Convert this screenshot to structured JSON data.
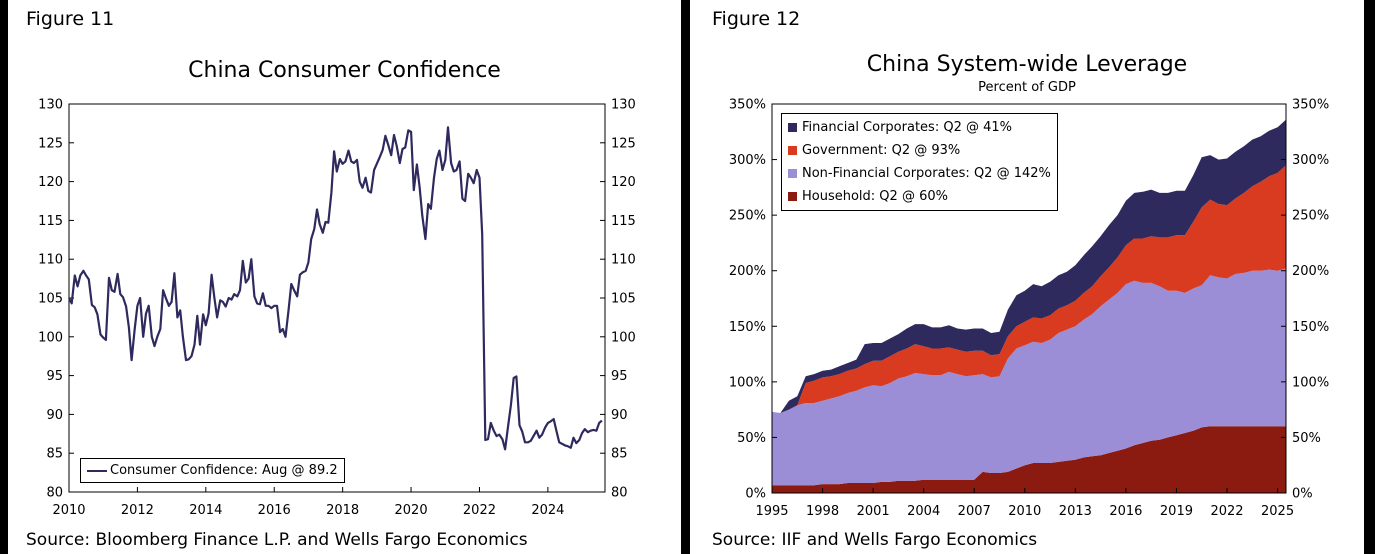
{
  "figure11": {
    "label": "Figure 11",
    "source": "Source: Bloomberg Finance L.P. and Wells Fargo Economics"
  },
  "figure12": {
    "label": "Figure 12",
    "source": "Source: IIF and Wells Fargo Economics"
  },
  "chart_data": [
    {
      "type": "line",
      "title": "China Consumer Confidence",
      "xlabel": "",
      "ylabel": "",
      "xlim": [
        2010,
        2025.67
      ],
      "ylim": [
        80,
        130
      ],
      "y_ticks": [
        80,
        85,
        90,
        95,
        100,
        105,
        110,
        115,
        120,
        125,
        130
      ],
      "x_ticks": [
        2010,
        2012,
        2014,
        2016,
        2018,
        2020,
        2022,
        2024
      ],
      "legend_position": "bottom-left",
      "color": "#2e2a5e",
      "series": [
        {
          "name": "Consumer Confidence: Aug @ 89.2",
          "x": [
            2010.0,
            2010.08,
            2010.17,
            2010.25,
            2010.33,
            2010.42,
            2010.5,
            2010.58,
            2010.67,
            2010.75,
            2010.83,
            2010.92,
            2011.0,
            2011.08,
            2011.17,
            2011.25,
            2011.33,
            2011.42,
            2011.5,
            2011.58,
            2011.67,
            2011.75,
            2011.83,
            2011.92,
            2012.0,
            2012.08,
            2012.17,
            2012.25,
            2012.33,
            2012.42,
            2012.5,
            2012.58,
            2012.67,
            2012.75,
            2012.83,
            2012.92,
            2013.0,
            2013.08,
            2013.17,
            2013.25,
            2013.33,
            2013.42,
            2013.5,
            2013.58,
            2013.67,
            2013.75,
            2013.83,
            2013.92,
            2014.0,
            2014.08,
            2014.17,
            2014.25,
            2014.33,
            2014.42,
            2014.5,
            2014.58,
            2014.67,
            2014.75,
            2014.83,
            2014.92,
            2015.0,
            2015.08,
            2015.17,
            2015.25,
            2015.33,
            2015.42,
            2015.5,
            2015.58,
            2015.67,
            2015.75,
            2015.83,
            2015.92,
            2016.0,
            2016.08,
            2016.17,
            2016.25,
            2016.33,
            2016.42,
            2016.5,
            2016.58,
            2016.67,
            2016.75,
            2016.83,
            2016.92,
            2017.0,
            2017.08,
            2017.17,
            2017.25,
            2017.33,
            2017.42,
            2017.5,
            2017.58,
            2017.67,
            2017.75,
            2017.83,
            2017.92,
            2018.0,
            2018.08,
            2018.17,
            2018.25,
            2018.33,
            2018.42,
            2018.5,
            2018.58,
            2018.67,
            2018.75,
            2018.83,
            2018.92,
            2019.0,
            2019.08,
            2019.17,
            2019.25,
            2019.33,
            2019.42,
            2019.5,
            2019.58,
            2019.67,
            2019.75,
            2019.83,
            2019.92,
            2020.0,
            2020.08,
            2020.17,
            2020.25,
            2020.33,
            2020.42,
            2020.5,
            2020.58,
            2020.67,
            2020.75,
            2020.83,
            2020.92,
            2021.0,
            2021.08,
            2021.17,
            2021.25,
            2021.33,
            2021.42,
            2021.5,
            2021.58,
            2021.67,
            2021.75,
            2021.83,
            2021.92,
            2022.0,
            2022.08,
            2022.17,
            2022.25,
            2022.33,
            2022.42,
            2022.5,
            2022.58,
            2022.67,
            2022.75,
            2022.83,
            2022.92,
            2023.0,
            2023.08,
            2023.17,
            2023.25,
            2023.33,
            2023.42,
            2023.5,
            2023.58,
            2023.67,
            2023.75,
            2023.83,
            2023.92,
            2024.0,
            2024.08,
            2024.17,
            2024.25,
            2024.33,
            2024.42,
            2024.5,
            2024.58,
            2024.67,
            2024.75,
            2024.83,
            2024.92,
            2025.0,
            2025.08,
            2025.17,
            2025.25,
            2025.33,
            2025.42,
            2025.5,
            2025.58
          ],
          "values": [
            105.0,
            104.3,
            107.9,
            106.5,
            107.9,
            108.5,
            107.9,
            107.4,
            104.1,
            103.8,
            102.9,
            100.3,
            99.9,
            99.6,
            107.6,
            106.0,
            105.8,
            108.1,
            105.5,
            105.1,
            103.9,
            101.2,
            97.0,
            101.0,
            104.0,
            105.0,
            100.0,
            103.0,
            104.0,
            100.0,
            98.8,
            100.0,
            101.0,
            106.0,
            105.0,
            104.0,
            104.5,
            108.2,
            102.5,
            103.4,
            100.0,
            97.0,
            97.1,
            97.5,
            99.0,
            102.7,
            99.0,
            102.9,
            101.5,
            103.0,
            108.0,
            105.0,
            102.5,
            104.7,
            104.5,
            103.9,
            105.0,
            104.8,
            105.5,
            105.2,
            106.0,
            109.8,
            107.0,
            107.5,
            110.0,
            105.2,
            104.3,
            104.2,
            105.6,
            104.0,
            104.0,
            103.7,
            104.0,
            104.0,
            100.6,
            101.0,
            100.0,
            103.5,
            106.8,
            106.0,
            105.2,
            108.0,
            108.3,
            108.5,
            109.6,
            112.6,
            113.9,
            116.4,
            114.5,
            113.4,
            114.8,
            114.7,
            118.6,
            123.9,
            121.3,
            122.9,
            122.3,
            122.6,
            124.0,
            122.6,
            122.4,
            122.8,
            120.0,
            119.2,
            120.5,
            118.8,
            118.6,
            121.5,
            122.3,
            123.1,
            124.1,
            125.9,
            124.8,
            123.4,
            126.0,
            124.6,
            122.4,
            124.2,
            124.4,
            126.6,
            126.4,
            118.9,
            122.2,
            119.3,
            115.6,
            112.6,
            117.1,
            116.5,
            120.5,
            122.9,
            124.0,
            121.5,
            122.8,
            127.0,
            122.4,
            121.3,
            121.5,
            122.6,
            117.8,
            117.5,
            121.0,
            120.5,
            119.8,
            121.5,
            120.5,
            113.2,
            86.7,
            86.8,
            88.9,
            87.9,
            87.2,
            87.4,
            86.8,
            85.5,
            88.3,
            91.2,
            94.7,
            94.9,
            88.6,
            87.8,
            86.4,
            86.4,
            86.6,
            87.2,
            87.9,
            87.0,
            87.4,
            88.3,
            88.9,
            89.1,
            89.4,
            87.9,
            86.4,
            86.2,
            86.0,
            85.9,
            85.7,
            87.0,
            86.3,
            86.7,
            87.6,
            88.1,
            87.7,
            87.9,
            88.0,
            87.9,
            88.9,
            89.2
          ]
        }
      ]
    },
    {
      "type": "area",
      "stacked": true,
      "title": "China System-wide Leverage",
      "subtitle": "Percent of GDP",
      "xlabel": "",
      "ylabel": "",
      "xlim": [
        1995,
        2025.5
      ],
      "ylim": [
        0,
        350
      ],
      "y_ticks": [
        0,
        50,
        100,
        150,
        200,
        250,
        300,
        350
      ],
      "y_tick_labels": [
        "0%",
        "50%",
        "100%",
        "150%",
        "200%",
        "250%",
        "300%",
        "350%"
      ],
      "x_ticks": [
        1995,
        1998,
        2001,
        2004,
        2007,
        2010,
        2013,
        2016,
        2019,
        2022,
        2025
      ],
      "legend_position": "top-left",
      "x": [
        1995,
        1995.5,
        1996,
        1996.5,
        1997,
        1997.5,
        1998,
        1998.5,
        1999,
        1999.5,
        2000,
        2000.5,
        2001,
        2001.5,
        2002,
        2002.5,
        2003,
        2003.5,
        2004,
        2004.5,
        2005,
        2005.5,
        2006,
        2006.5,
        2007,
        2007.5,
        2008,
        2008.5,
        2009,
        2009.5,
        2010,
        2010.5,
        2011,
        2011.5,
        2012,
        2012.5,
        2013,
        2013.5,
        2014,
        2014.5,
        2015,
        2015.5,
        2016,
        2016.5,
        2017,
        2017.5,
        2018,
        2018.5,
        2019,
        2019.5,
        2020,
        2020.5,
        2021,
        2021.5,
        2022,
        2022.5,
        2023,
        2023.5,
        2024,
        2024.5,
        2025,
        2025.5
      ],
      "series": [
        {
          "name": "Household: Q2 @ 60%",
          "color": "#8b1a10",
          "values": [
            7,
            7,
            7,
            7,
            7,
            7,
            8,
            8,
            8,
            9,
            9,
            9,
            9,
            10,
            10,
            11,
            11,
            11,
            12,
            12,
            12,
            12,
            12,
            12,
            12,
            19,
            18,
            18,
            19,
            22,
            25,
            27,
            27,
            27,
            28,
            29,
            30,
            32,
            33,
            34,
            36,
            38,
            40,
            43,
            45,
            47,
            48,
            50,
            52,
            54,
            56,
            59,
            60,
            60,
            60,
            60,
            60,
            60,
            60,
            60,
            60,
            60
          ]
        },
        {
          "name": "Non-Financial Corporates: Q2 @ 142%",
          "color": "#9b8ed6",
          "values": [
            66,
            65,
            68,
            72,
            74,
            74,
            75,
            77,
            79,
            81,
            83,
            86,
            88,
            86,
            89,
            92,
            94,
            97,
            95,
            94,
            94,
            97,
            95,
            93,
            94,
            88,
            86,
            87,
            102,
            108,
            108,
            109,
            108,
            111,
            116,
            118,
            120,
            124,
            128,
            134,
            138,
            142,
            148,
            148,
            144,
            142,
            138,
            132,
            130,
            126,
            128,
            128,
            136,
            134,
            133,
            137,
            138,
            140,
            140,
            141,
            140,
            142
          ]
        },
        {
          "name": "Government: Q2 @ 93%",
          "color": "#d93b20",
          "values": [
            0,
            0,
            0,
            0,
            18,
            20,
            21,
            20,
            20,
            20,
            20,
            21,
            22,
            23,
            24,
            24,
            25,
            26,
            25,
            24,
            24,
            22,
            22,
            22,
            22,
            21,
            20,
            20,
            20,
            20,
            21,
            22,
            22,
            22,
            22,
            22,
            23,
            24,
            25,
            27,
            29,
            32,
            35,
            38,
            40,
            42,
            44,
            48,
            50,
            52,
            60,
            70,
            68,
            66,
            66,
            68,
            72,
            76,
            80,
            84,
            88,
            93
          ]
        },
        {
          "name": "Financial Corporates: Q2 @ 41%",
          "color": "#2e2a5e",
          "values": [
            0,
            0,
            8,
            8,
            6,
            6,
            6,
            6,
            7,
            7,
            8,
            18,
            16,
            16,
            16,
            16,
            18,
            18,
            20,
            19,
            19,
            20,
            19,
            20,
            20,
            20,
            20,
            20,
            24,
            28,
            28,
            30,
            29,
            30,
            30,
            30,
            32,
            34,
            36,
            36,
            38,
            38,
            40,
            41,
            42,
            42,
            40,
            40,
            40,
            40,
            42,
            45,
            40,
            40,
            42,
            42,
            42,
            42,
            41,
            41,
            41,
            41
          ]
        }
      ],
      "legend_order": [
        "Financial Corporates: Q2 @ 41%",
        "Government: Q2 @ 93%",
        "Non-Financial Corporates: Q2 @ 142%",
        "Household: Q2 @ 60%"
      ]
    }
  ]
}
